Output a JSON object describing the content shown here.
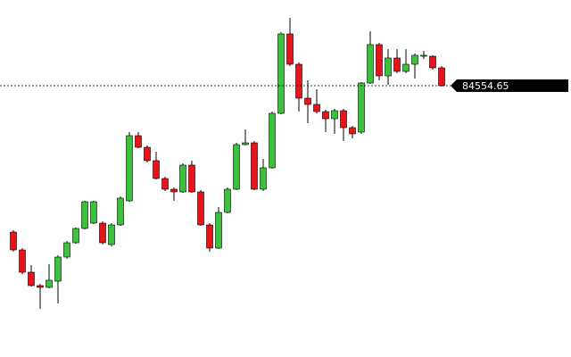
{
  "chart_data": {
    "type": "candlestick",
    "up_color": "#3cc13c",
    "down_color": "#e8141c",
    "ylim": [
      80755,
      85755
    ],
    "last_price": {
      "value": 84554.65,
      "label": "84554.65"
    },
    "open": [
      82505,
      82255,
      81942.5,
      81755,
      81730,
      81817.5,
      82155,
      82355,
      82555,
      82630,
      82630,
      82330,
      82605,
      82942.5,
      83855,
      83692.5,
      83505,
      83255,
      83105,
      83067.5,
      83442.5,
      83067.5,
      82605,
      82280,
      82780,
      83105,
      83730,
      83755,
      83105,
      83405,
      84167.5,
      85280,
      84855,
      84380,
      84292.5,
      84192.5,
      84092.5,
      84205,
      83967.5,
      83905,
      84592.5,
      85130,
      84692.5,
      84942.5,
      84755,
      84855,
      84967.5,
      84967.5,
      84805
    ],
    "high": [
      82530,
      82280,
      82042.5,
      81780,
      82055,
      82180,
      82380,
      82567.5,
      82942.5,
      82942.5,
      82655,
      82630,
      83005,
      83905,
      83905,
      83717.5,
      83630,
      83280,
      83130,
      83467.5,
      83505,
      83092.5,
      82630,
      82855,
      83130,
      83755,
      83942.5,
      83780,
      83530,
      84192.5,
      85305,
      85505,
      84880,
      84630,
      84505,
      84217.5,
      84230,
      84230,
      83992.5,
      84605,
      85317.5,
      85155,
      85067.5,
      85067.5,
      85067.5,
      85005,
      85042.5,
      84980,
      84830
    ],
    "low": [
      82230,
      81917.5,
      81742.5,
      81430,
      81717.5,
      81505,
      82130,
      82342.5,
      82542.5,
      82617.5,
      82330,
      82305,
      82592.5,
      82930,
      83680,
      83480,
      83242.5,
      83080,
      82942.5,
      83055,
      83055,
      82592.5,
      82230,
      82267.5,
      82767.5,
      83092.5,
      83717.5,
      83092.5,
      83080,
      83392.5,
      84155,
      84830,
      84192.5,
      84030,
      84167.5,
      83905,
      83880,
      83780,
      83817.5,
      83880,
      84580,
      84630,
      84567.5,
      84730,
      84730,
      84655,
      84930,
      84780,
      84542.5
    ],
    "close": [
      82255,
      81942.5,
      81755,
      81730,
      81830,
      82155,
      82355,
      82555,
      82930,
      82930,
      82355,
      82605,
      82980,
      83855,
      83692.5,
      83505,
      83255,
      83105,
      83067.5,
      83442.5,
      83067.5,
      82605,
      82280,
      82780,
      83105,
      83730,
      83755,
      83105,
      83405,
      84167.5,
      85280,
      84855,
      84380,
      84292.5,
      84192.5,
      84092.5,
      84205,
      83967.5,
      83880,
      84592.5,
      85130,
      84692.5,
      84942.5,
      84755,
      84855,
      84980,
      84980,
      84805,
      84555
    ]
  }
}
